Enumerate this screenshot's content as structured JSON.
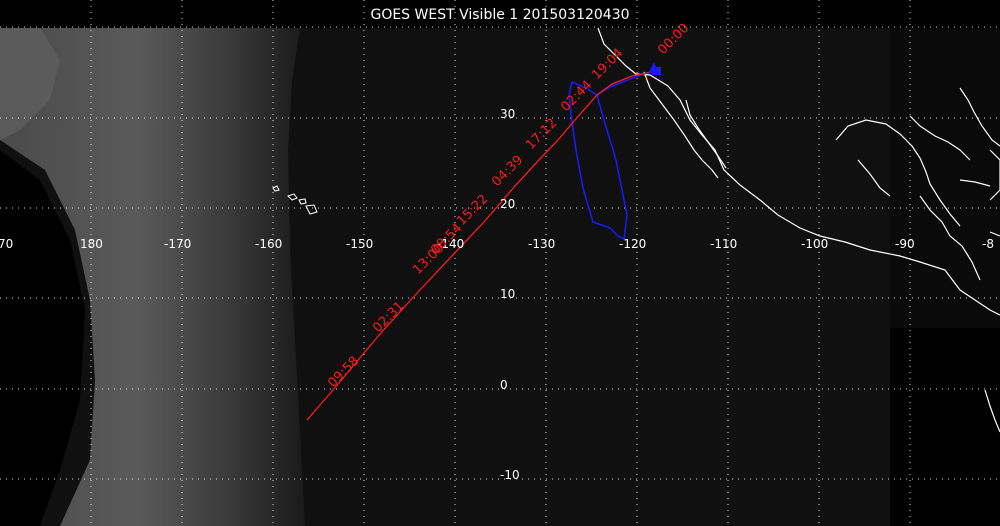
{
  "title": "GOES WEST Visible 1 201503120430",
  "colors": {
    "background": "#000000",
    "graticule": "#ffffff",
    "coastline": "#ffffff",
    "forecast_track": "#ff1a1a",
    "observed_track": "#1a1aff"
  },
  "graticule": {
    "longitude_labels": [
      "70",
      "180",
      "-170",
      "-160",
      "-150",
      "-140",
      "-130",
      "-120",
      "-110",
      "-100",
      "-90",
      "-8"
    ],
    "latitude_labels": [
      "30",
      "20",
      "10",
      "0",
      "-10"
    ],
    "style": "dotted"
  },
  "forecast_track": {
    "time_labels": [
      "09:58",
      "02:31",
      "13:00",
      "08:54",
      "15:22",
      "04:39",
      "17:12",
      "02:44",
      "19:04",
      "00:00"
    ]
  },
  "icons": [
    "launch-site-icon"
  ]
}
